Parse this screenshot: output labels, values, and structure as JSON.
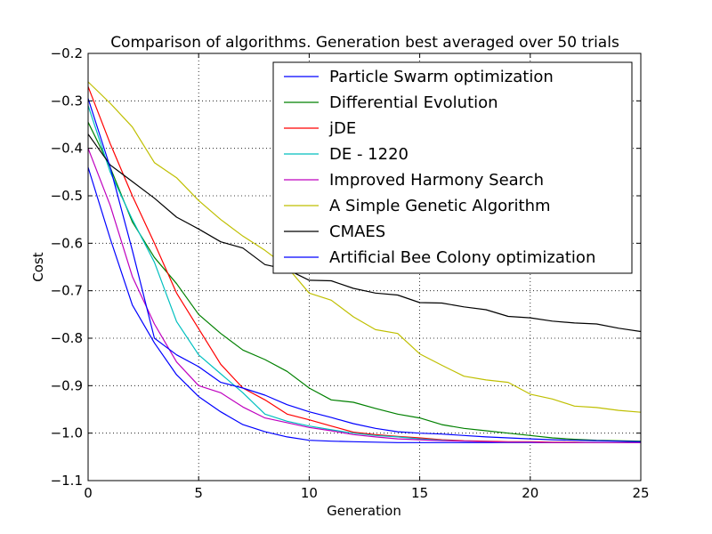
{
  "chart_data": {
    "type": "line",
    "title": "Comparison of algorithms. Generation best averaged over 50 trials",
    "xlabel": "Generation",
    "ylabel": "Cost",
    "xlim": [
      0,
      25
    ],
    "ylim": [
      -1.1,
      -0.2
    ],
    "xticks": [
      0,
      5,
      10,
      15,
      20,
      25
    ],
    "xtick_labels": [
      "0",
      "5",
      "10",
      "15",
      "20",
      "25"
    ],
    "yticks": [
      -1.1,
      -1.0,
      -0.9,
      -0.8,
      -0.7,
      -0.6,
      -0.5,
      -0.4,
      -0.3,
      -0.2
    ],
    "ytick_labels": [
      "−1.1",
      "−1.0",
      "−0.9",
      "−0.8",
      "−0.7",
      "−0.6",
      "−0.5",
      "−0.4",
      "−0.3",
      "−0.2"
    ],
    "grid": true,
    "legend_position": "top-right",
    "x": [
      0,
      1,
      2,
      3,
      4,
      5,
      6,
      7,
      8,
      9,
      10,
      11,
      12,
      13,
      14,
      15,
      16,
      17,
      18,
      19,
      20,
      21,
      22,
      23,
      24,
      25
    ],
    "series": [
      {
        "name": "Particle Swarm optimization",
        "color": "#0000ff",
        "values": [
          -0.44,
          -0.59,
          -0.73,
          -0.81,
          -0.877,
          -0.923,
          -0.955,
          -0.982,
          -0.997,
          -1.008,
          -1.015,
          -1.017,
          -1.018,
          -1.019,
          -1.02,
          -1.02,
          -1.02,
          -1.02,
          -1.02,
          -1.02,
          -1.02,
          -1.02,
          -1.02,
          -1.02,
          -1.02,
          -1.02
        ]
      },
      {
        "name": "Differential Evolution",
        "color": "#008000",
        "values": [
          -0.345,
          -0.44,
          -0.555,
          -0.63,
          -0.685,
          -0.75,
          -0.79,
          -0.825,
          -0.845,
          -0.87,
          -0.905,
          -0.93,
          -0.935,
          -0.948,
          -0.96,
          -0.968,
          -0.982,
          -0.99,
          -0.995,
          -1.0,
          -1.005,
          -1.01,
          -1.013,
          -1.015,
          -1.016,
          -1.017
        ]
      },
      {
        "name": "jDE",
        "color": "#ff0000",
        "values": [
          -0.27,
          -0.39,
          -0.5,
          -0.6,
          -0.705,
          -0.78,
          -0.855,
          -0.905,
          -0.93,
          -0.96,
          -0.972,
          -0.985,
          -0.998,
          -1.003,
          -1.007,
          -1.01,
          -1.014,
          -1.016,
          -1.017,
          -1.018,
          -1.018,
          -1.019,
          -1.019,
          -1.02,
          -1.02,
          -1.02
        ]
      },
      {
        "name": "DE - 1220",
        "color": "#00bfbf",
        "values": [
          -0.31,
          -0.45,
          -0.55,
          -0.64,
          -0.765,
          -0.835,
          -0.875,
          -0.915,
          -0.96,
          -0.975,
          -0.985,
          -0.993,
          -1.0,
          -1.005,
          -1.008,
          -1.012,
          -1.015,
          -1.017,
          -1.018,
          -1.019,
          -1.019,
          -1.02,
          -1.02,
          -1.02,
          -1.02,
          -1.02
        ]
      },
      {
        "name": "Improved Harmony Search",
        "color": "#bf00bf",
        "values": [
          -0.4,
          -0.52,
          -0.67,
          -0.77,
          -0.85,
          -0.9,
          -0.915,
          -0.945,
          -0.968,
          -0.978,
          -0.988,
          -0.995,
          -1.003,
          -1.008,
          -1.012,
          -1.014,
          -1.016,
          -1.017,
          -1.018,
          -1.019,
          -1.019,
          -1.02,
          -1.02,
          -1.02,
          -1.02,
          -1.02
        ]
      },
      {
        "name": "A Simple Genetic Algorithm",
        "color": "#bfbf00",
        "values": [
          -0.26,
          -0.305,
          -0.355,
          -0.43,
          -0.462,
          -0.51,
          -0.55,
          -0.585,
          -0.615,
          -0.65,
          -0.705,
          -0.72,
          -0.755,
          -0.782,
          -0.79,
          -0.833,
          -0.857,
          -0.88,
          -0.888,
          -0.893,
          -0.918,
          -0.928,
          -0.943,
          -0.946,
          -0.952,
          -0.956
        ]
      },
      {
        "name": "CMAES",
        "color": "#000000",
        "values": [
          -0.37,
          -0.435,
          -0.47,
          -0.505,
          -0.545,
          -0.57,
          -0.597,
          -0.61,
          -0.645,
          -0.655,
          -0.678,
          -0.679,
          -0.695,
          -0.705,
          -0.709,
          -0.725,
          -0.726,
          -0.734,
          -0.74,
          -0.754,
          -0.757,
          -0.764,
          -0.768,
          -0.77,
          -0.779,
          -0.786
        ]
      },
      {
        "name": "Artificial Bee Colony optimization",
        "color": "#0000ff",
        "values": [
          -0.295,
          -0.44,
          -0.615,
          -0.8,
          -0.835,
          -0.86,
          -0.893,
          -0.905,
          -0.92,
          -0.94,
          -0.955,
          -0.967,
          -0.98,
          -0.99,
          -0.997,
          -1.0,
          -1.002,
          -1.005,
          -1.008,
          -1.01,
          -1.012,
          -1.014,
          -1.015,
          -1.016,
          -1.017,
          -1.018
        ]
      }
    ]
  }
}
